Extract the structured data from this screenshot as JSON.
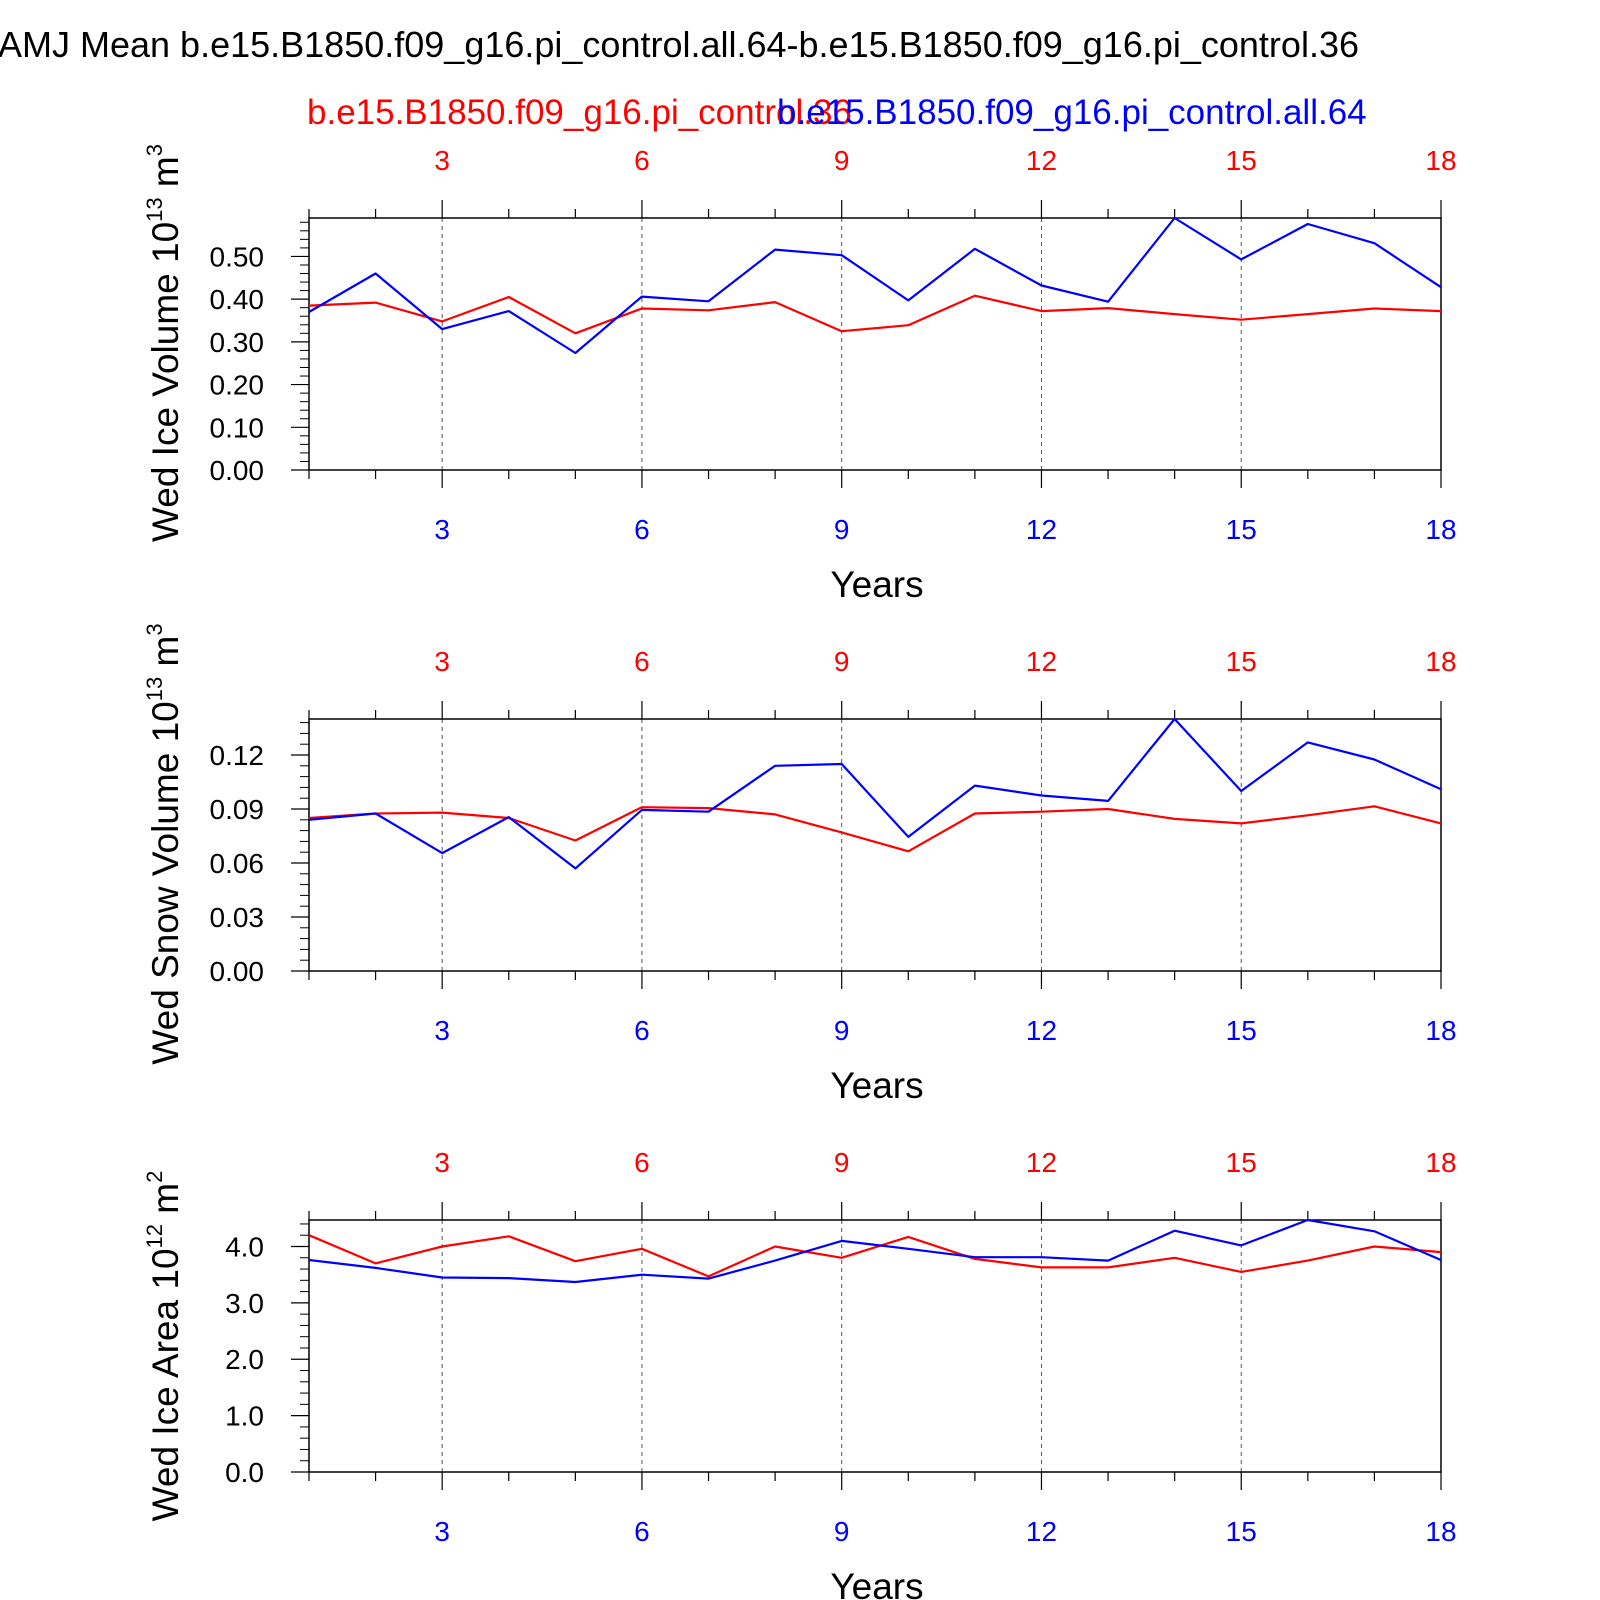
{
  "figure": {
    "title": "AMJ Mean b.e15.B1850.f09_g16.pi_control.all.64-b.e15.B1850.f09_g16.pi_control.36",
    "legend": {
      "red_label": "b.e15.B1850.f09_g16.pi_control.36",
      "blue_label": "b.e15.B1850.f09_g16.pi_control.all.64"
    },
    "colors": {
      "red": "#ff0000",
      "blue": "#0000ff",
      "axis": "#000000",
      "grid": "#555555"
    }
  },
  "chart_data": [
    {
      "type": "line",
      "ylabel_main": "Wed Ice Volume 10",
      "ylabel_exp": "13",
      "ylabel_unit": " m",
      "ylabel_unit_exp": "3",
      "xlabel": "Years",
      "xlim": [
        1,
        18
      ],
      "ylim": [
        0,
        0.59
      ],
      "xticks": [
        3,
        6,
        9,
        12,
        15,
        18
      ],
      "xtick_labels": [
        "3",
        "6",
        "9",
        "12",
        "15",
        "18"
      ],
      "yticks": [
        0.0,
        0.1,
        0.2,
        0.3,
        0.4,
        0.5
      ],
      "ytick_labels": [
        "0.00",
        "0.10",
        "0.20",
        "0.30",
        "0.40",
        "0.50"
      ],
      "yminor_step": 0.02,
      "x": [
        1,
        2,
        3,
        4,
        5,
        6,
        7,
        8,
        9,
        10,
        11,
        12,
        13,
        14,
        15,
        16,
        17,
        18
      ],
      "series": [
        {
          "name": "b.e15.B1850.f09_g16.pi_control.36",
          "color": "#ff0000",
          "values": [
            0.385,
            0.392,
            0.348,
            0.405,
            0.32,
            0.378,
            0.374,
            0.393,
            0.325,
            0.339,
            0.408,
            0.372,
            0.379,
            0.365,
            0.352,
            0.365,
            0.378,
            0.372
          ]
        },
        {
          "name": "b.e15.B1850.f09_g16.pi_control.all.64",
          "color": "#0000ff",
          "values": [
            0.37,
            0.46,
            0.33,
            0.372,
            0.274,
            0.406,
            0.395,
            0.516,
            0.503,
            0.397,
            0.518,
            0.432,
            0.394,
            0.59,
            0.493,
            0.576,
            0.531,
            0.428
          ]
        }
      ]
    },
    {
      "type": "line",
      "ylabel_main": "Wed Snow Volume 10",
      "ylabel_exp": "13",
      "ylabel_unit": " m",
      "ylabel_unit_exp": "3",
      "xlabel": "Years",
      "xlim": [
        1,
        18
      ],
      "ylim": [
        0,
        0.14
      ],
      "xticks": [
        3,
        6,
        9,
        12,
        15,
        18
      ],
      "xtick_labels": [
        "3",
        "6",
        "9",
        "12",
        "15",
        "18"
      ],
      "yticks": [
        0.0,
        0.03,
        0.06,
        0.09,
        0.12
      ],
      "ytick_labels": [
        "0.00",
        "0.03",
        "0.06",
        "0.09",
        "0.12"
      ],
      "yminor_step": 0.006,
      "x": [
        1,
        2,
        3,
        4,
        5,
        6,
        7,
        8,
        9,
        10,
        11,
        12,
        13,
        14,
        15,
        16,
        17,
        18
      ],
      "series": [
        {
          "name": "b.e15.B1850.f09_g16.pi_control.36",
          "color": "#ff0000",
          "values": [
            0.085,
            0.0875,
            0.088,
            0.085,
            0.0725,
            0.091,
            0.0905,
            0.087,
            0.077,
            0.0665,
            0.0875,
            0.0885,
            0.09,
            0.0845,
            0.082,
            0.0865,
            0.0915,
            0.082
          ]
        },
        {
          "name": "b.e15.B1850.f09_g16.pi_control.all.64",
          "color": "#0000ff",
          "values": [
            0.084,
            0.0875,
            0.0655,
            0.0855,
            0.057,
            0.0895,
            0.0885,
            0.114,
            0.115,
            0.0745,
            0.103,
            0.0975,
            0.0945,
            0.14,
            0.1,
            0.127,
            0.1175,
            0.101
          ]
        }
      ]
    },
    {
      "type": "line",
      "ylabel_main": "Wed Ice Area 10",
      "ylabel_exp": "12",
      "ylabel_unit": " m",
      "ylabel_unit_exp": "2",
      "xlabel": "Years",
      "xlim": [
        1,
        18
      ],
      "ylim": [
        0,
        4.47
      ],
      "xticks": [
        3,
        6,
        9,
        12,
        15,
        18
      ],
      "xtick_labels": [
        "3",
        "6",
        "9",
        "12",
        "15",
        "18"
      ],
      "yticks": [
        0.0,
        1.0,
        2.0,
        3.0,
        4.0
      ],
      "ytick_labels": [
        "0.0",
        "1.0",
        "2.0",
        "3.0",
        "4.0"
      ],
      "yminor_step": 0.2,
      "x": [
        1,
        2,
        3,
        4,
        5,
        6,
        7,
        8,
        9,
        10,
        11,
        12,
        13,
        14,
        15,
        16,
        17,
        18
      ],
      "series": [
        {
          "name": "b.e15.B1850.f09_g16.pi_control.36",
          "color": "#ff0000",
          "values": [
            4.2,
            3.7,
            4.0,
            4.18,
            3.74,
            3.96,
            3.47,
            4.0,
            3.8,
            4.17,
            3.78,
            3.63,
            3.63,
            3.8,
            3.55,
            3.75,
            4.0,
            3.9
          ]
        },
        {
          "name": "b.e15.B1850.f09_g16.pi_control.all.64",
          "color": "#0000ff",
          "values": [
            3.76,
            3.62,
            3.45,
            3.44,
            3.37,
            3.5,
            3.43,
            3.75,
            4.1,
            3.96,
            3.81,
            3.81,
            3.75,
            4.28,
            4.02,
            4.47,
            4.27,
            3.76
          ]
        }
      ]
    }
  ]
}
